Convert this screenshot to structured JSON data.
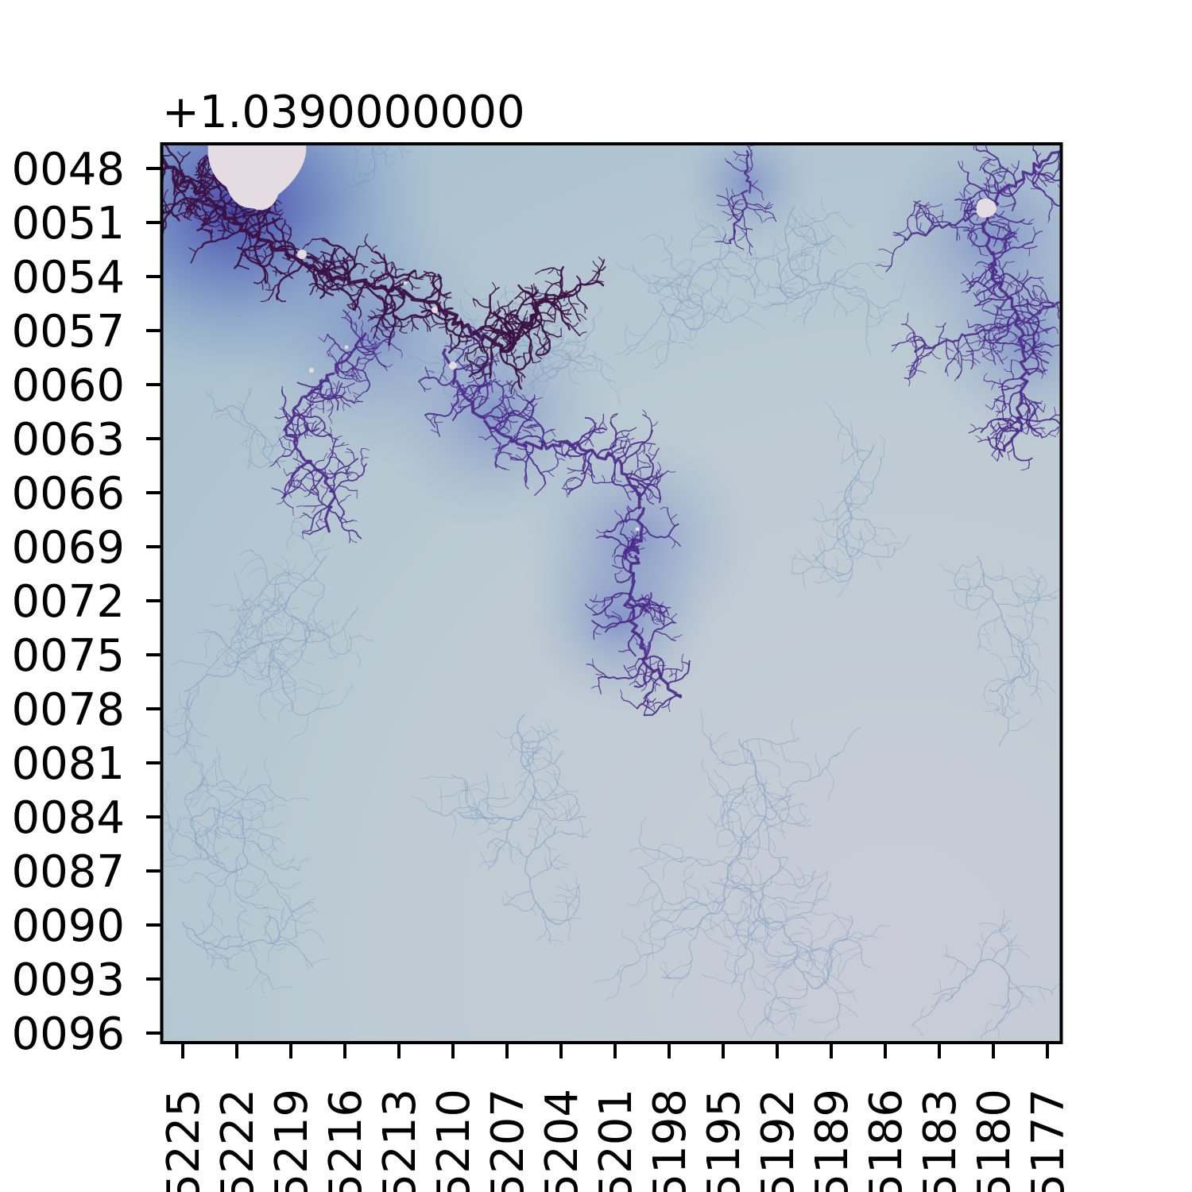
{
  "chart_data": {
    "type": "heatmap",
    "title": "",
    "offset_text": "+1.0390000000",
    "xlabel": "",
    "ylabel": "",
    "x_tick_labels": [
      "5225",
      "5222",
      "5219",
      "5216",
      "5213",
      "5210",
      "5207",
      "5204",
      "5201",
      "5198",
      "5195",
      "5192",
      "5189",
      "5186",
      "5183",
      "5180",
      "5177"
    ],
    "y_tick_labels": [
      "0096",
      "0093",
      "0090",
      "0087",
      "0084",
      "0081",
      "0078",
      "0075",
      "0072",
      "0069",
      "0066",
      "0063",
      "0060",
      "0057",
      "0054",
      "0051",
      "0048"
    ],
    "x_axis_direction": "decreasing left to right",
    "y_axis_direction": "increasing bottom to top",
    "grid": false,
    "legend": "none",
    "colormap": "twilight (pale blue-grey background, purple/indigo filaments, near-white interior)",
    "colors": {
      "background": "#c3ccd4",
      "filament_light": "#7d9cc4",
      "filament_dark": "#4b2a8a",
      "filament_core": "#3a1245",
      "interior": "#e5dce2"
    },
    "features": [
      "large pale interior bulb at top-left corner",
      "small pale minibrot near top-right",
      "dense purple dendrite running from top-left diagonally toward the center",
      "purple dendrite branch descending along the right edge",
      "faint thin blue filaments spread across the lower half"
    ]
  }
}
